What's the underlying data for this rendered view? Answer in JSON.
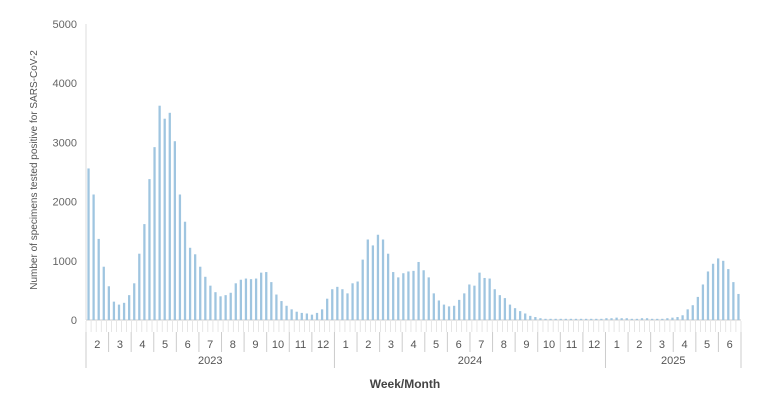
{
  "chart_data": {
    "type": "bar",
    "title": "",
    "xlabel": "Week/Month",
    "ylabel": "Number of specimens tested positive for SARS-CoV-2",
    "ylim": [
      0,
      5000
    ],
    "yticks": [
      "0",
      "1000",
      "2000",
      "3000",
      "4000",
      "5000"
    ],
    "grid": false,
    "bar_color": "#9fc5e0",
    "months": [
      {
        "label": "2",
        "year": "2023"
      },
      {
        "label": "3",
        "year": "2023"
      },
      {
        "label": "4",
        "year": "2023"
      },
      {
        "label": "5",
        "year": "2023"
      },
      {
        "label": "6",
        "year": "2023"
      },
      {
        "label": "7",
        "year": "2023"
      },
      {
        "label": "8",
        "year": "2023"
      },
      {
        "label": "9",
        "year": "2023"
      },
      {
        "label": "10",
        "year": "2023"
      },
      {
        "label": "11",
        "year": "2023"
      },
      {
        "label": "12",
        "year": "2023"
      },
      {
        "label": "1",
        "year": "2024"
      },
      {
        "label": "2",
        "year": "2024"
      },
      {
        "label": "3",
        "year": "2024"
      },
      {
        "label": "4",
        "year": "2024"
      },
      {
        "label": "5",
        "year": "2024"
      },
      {
        "label": "6",
        "year": "2024"
      },
      {
        "label": "7",
        "year": "2024"
      },
      {
        "label": "8",
        "year": "2024"
      },
      {
        "label": "9",
        "year": "2024"
      },
      {
        "label": "10",
        "year": "2024"
      },
      {
        "label": "11",
        "year": "2024"
      },
      {
        "label": "12",
        "year": "2024"
      },
      {
        "label": "1",
        "year": "2025"
      },
      {
        "label": "2",
        "year": "2025"
      },
      {
        "label": "3",
        "year": "2025"
      },
      {
        "label": "4",
        "year": "2025"
      },
      {
        "label": "5",
        "year": "2025"
      },
      {
        "label": "6",
        "year": "2025"
      }
    ],
    "years": [
      "2023",
      "2024",
      "2025"
    ],
    "values": [
      2560,
      2120,
      1370,
      900,
      570,
      310,
      260,
      290,
      420,
      620,
      1120,
      1620,
      2380,
      2920,
      3620,
      3400,
      3500,
      3020,
      2120,
      1660,
      1220,
      1110,
      900,
      730,
      580,
      470,
      400,
      420,
      460,
      620,
      680,
      700,
      690,
      700,
      800,
      810,
      640,
      430,
      320,
      240,
      180,
      140,
      120,
      110,
      90,
      120,
      180,
      360,
      520,
      560,
      520,
      450,
      620,
      650,
      1020,
      1360,
      1260,
      1440,
      1360,
      1120,
      810,
      720,
      790,
      820,
      830,
      980,
      840,
      720,
      450,
      330,
      260,
      230,
      240,
      340,
      450,
      600,
      580,
      800,
      710,
      700,
      520,
      420,
      370,
      260,
      200,
      150,
      110,
      70,
      50,
      30,
      20,
      20,
      20,
      20,
      20,
      20,
      20,
      20,
      20,
      20,
      20,
      20,
      30,
      30,
      40,
      30,
      30,
      20,
      20,
      30,
      30,
      20,
      20,
      20,
      30,
      40,
      50,
      80,
      180,
      250,
      390,
      600,
      820,
      950,
      1040,
      1000,
      860,
      640,
      440
    ]
  }
}
